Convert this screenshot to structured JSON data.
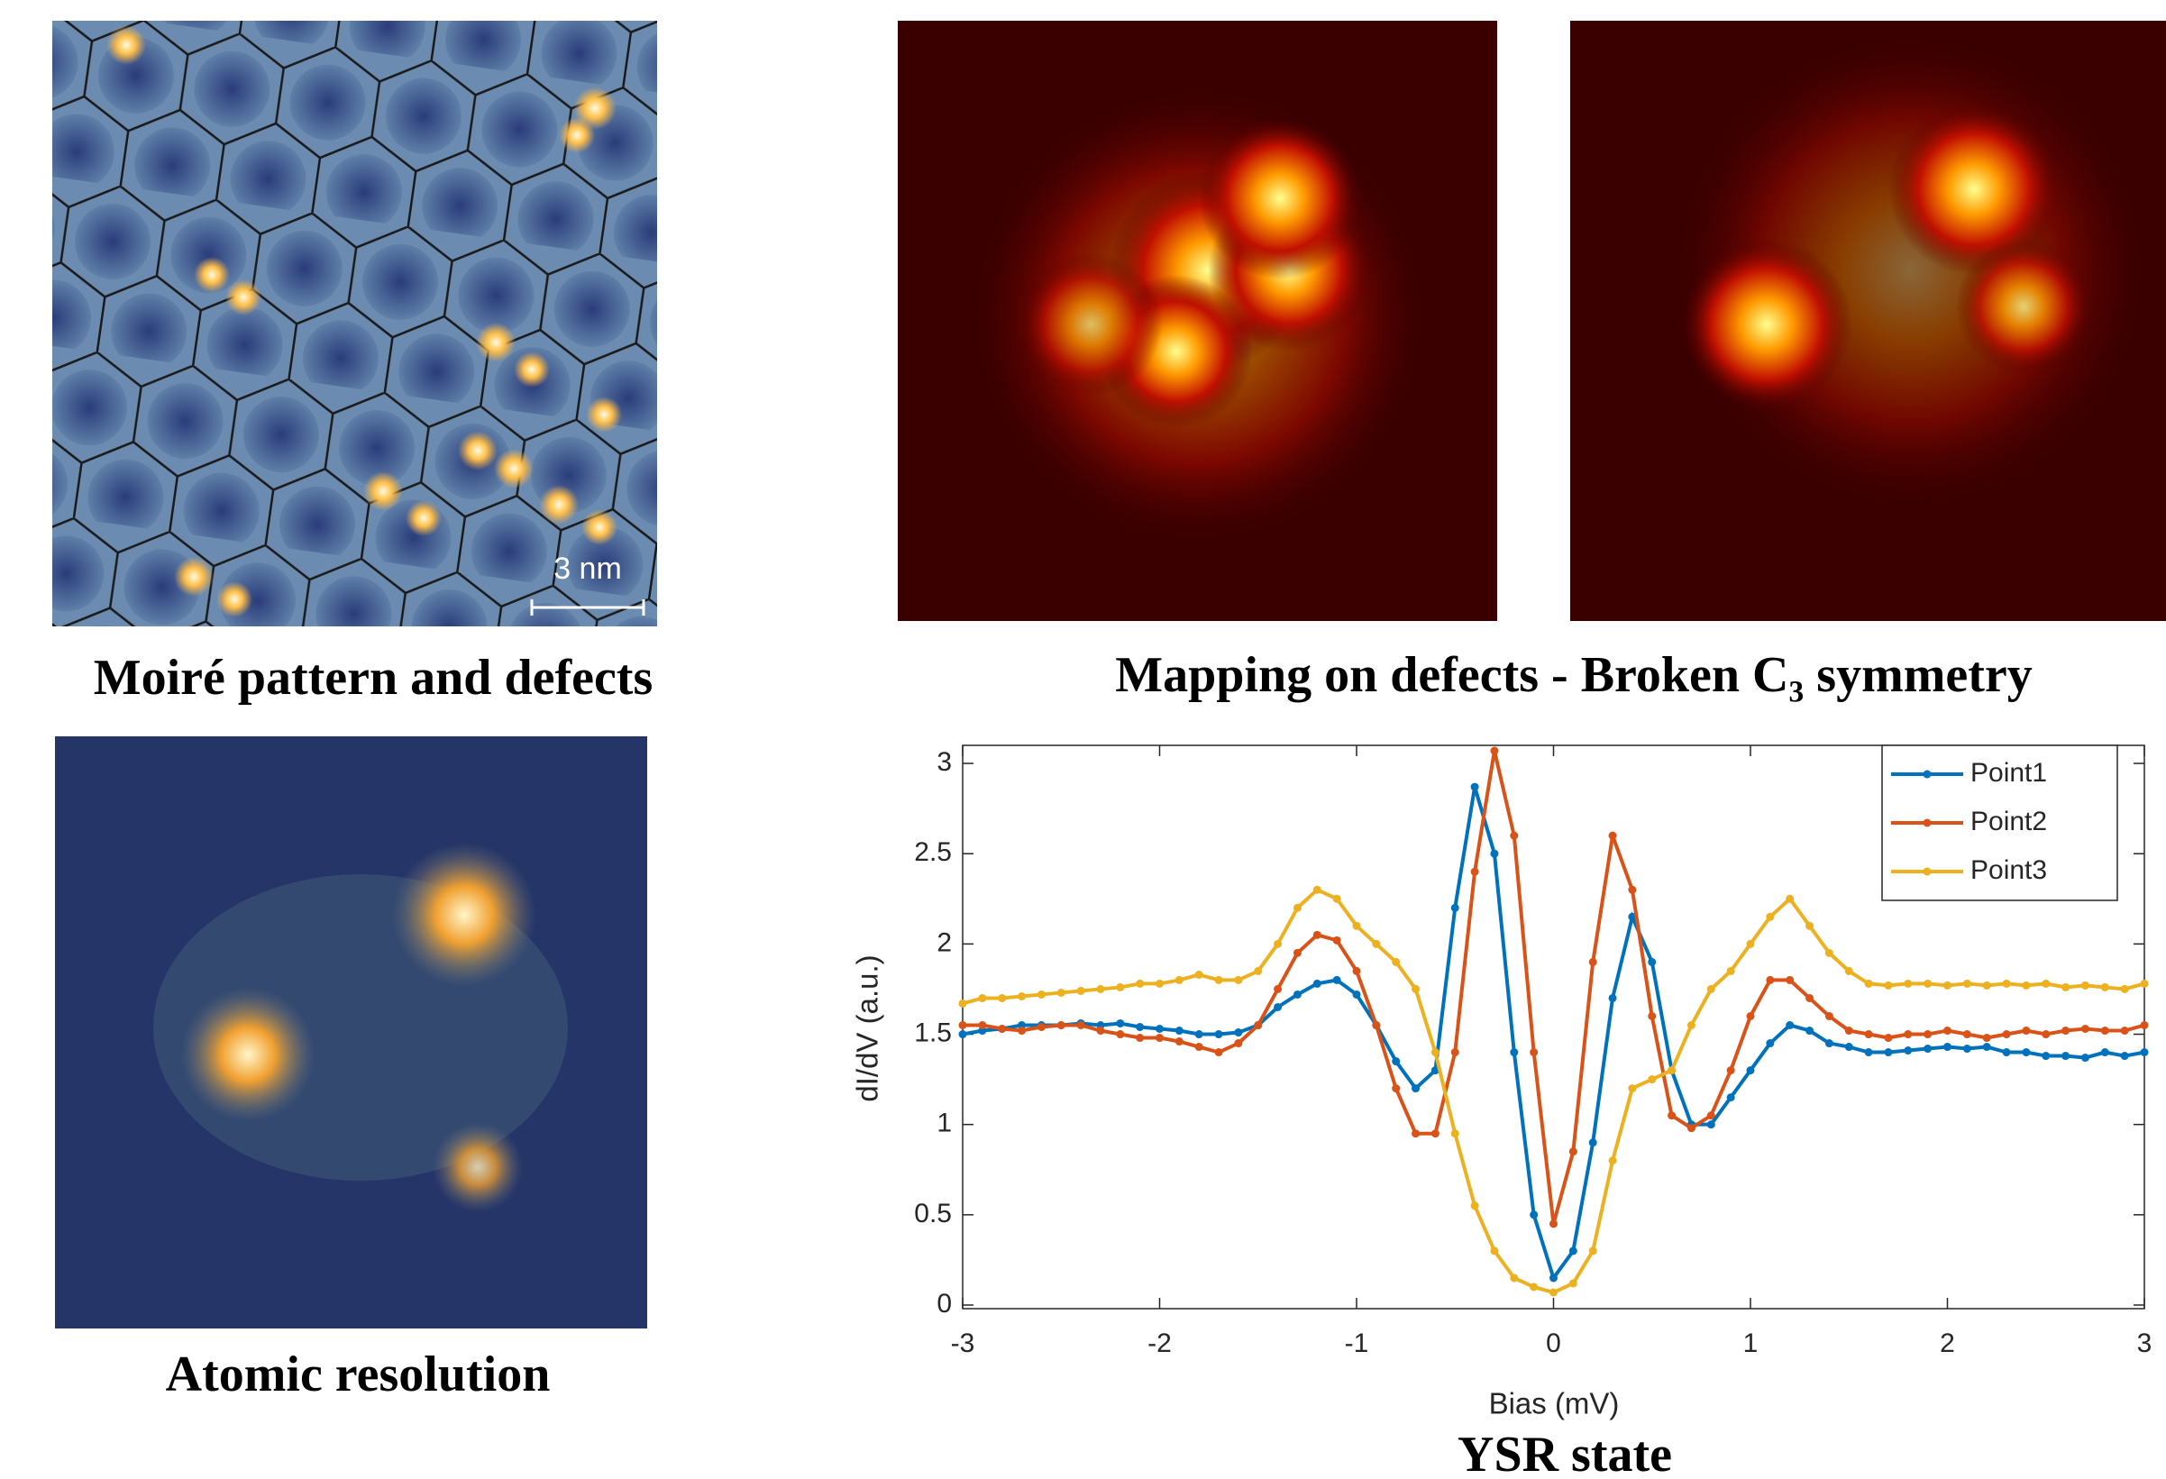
{
  "panels": {
    "moire_caption": "Moiré pattern and defects",
    "scale_bar": "3 nm",
    "mapping_caption": "Mapping on defects - Broken C₃ symmetry",
    "atomic_caption": "Atomic resolution",
    "ysr_caption": "YSR state"
  },
  "chart_data": {
    "type": "line",
    "xlabel": "Bias (mV)",
    "ylabel": "dI/dV (a.u.)",
    "x": [
      -3.0,
      -2.9,
      -2.8,
      -2.7,
      -2.6,
      -2.5,
      -2.4,
      -2.3,
      -2.2,
      -2.1,
      -2.0,
      -1.9,
      -1.8,
      -1.7,
      -1.6,
      -1.5,
      -1.4,
      -1.3,
      -1.2,
      -1.1,
      -1.0,
      -0.9,
      -0.8,
      -0.7,
      -0.6,
      -0.5,
      -0.4,
      -0.3,
      -0.2,
      -0.1,
      0.0,
      0.1,
      0.2,
      0.3,
      0.4,
      0.5,
      0.6,
      0.7,
      0.8,
      0.9,
      1.0,
      1.1,
      1.2,
      1.3,
      1.4,
      1.5,
      1.6,
      1.7,
      1.8,
      1.9,
      2.0,
      2.1,
      2.2,
      2.3,
      2.4,
      2.5,
      2.6,
      2.7,
      2.8,
      2.9,
      3.0
    ],
    "xlim": [
      -3,
      3
    ],
    "ylim": [
      -0.02,
      3.1
    ],
    "xticks": [
      -3,
      -2,
      -1,
      0,
      1,
      2,
      3
    ],
    "yticks": [
      0,
      0.5,
      1,
      1.5,
      2,
      2.5,
      3
    ],
    "legend": "upper right",
    "series": [
      {
        "name": "Point1",
        "color": "#0072BD",
        "values": [
          1.5,
          1.52,
          1.53,
          1.55,
          1.55,
          1.55,
          1.56,
          1.55,
          1.56,
          1.54,
          1.53,
          1.52,
          1.5,
          1.5,
          1.51,
          1.55,
          1.65,
          1.72,
          1.78,
          1.8,
          1.72,
          1.55,
          1.35,
          1.2,
          1.3,
          2.2,
          2.87,
          2.5,
          1.4,
          0.5,
          0.15,
          0.3,
          0.9,
          1.7,
          2.15,
          1.9,
          1.3,
          1.0,
          1.0,
          1.15,
          1.3,
          1.45,
          1.55,
          1.52,
          1.45,
          1.43,
          1.4,
          1.4,
          1.41,
          1.42,
          1.43,
          1.42,
          1.43,
          1.4,
          1.4,
          1.38,
          1.38,
          1.37,
          1.4,
          1.38,
          1.4
        ]
      },
      {
        "name": "Point2",
        "color": "#D95319",
        "values": [
          1.55,
          1.55,
          1.53,
          1.52,
          1.54,
          1.55,
          1.55,
          1.52,
          1.5,
          1.48,
          1.48,
          1.46,
          1.43,
          1.4,
          1.45,
          1.55,
          1.75,
          1.95,
          2.05,
          2.02,
          1.85,
          1.55,
          1.2,
          0.95,
          0.95,
          1.4,
          2.4,
          3.07,
          2.6,
          1.4,
          0.45,
          0.85,
          1.9,
          2.6,
          2.3,
          1.6,
          1.05,
          0.98,
          1.05,
          1.3,
          1.6,
          1.8,
          1.8,
          1.7,
          1.6,
          1.52,
          1.5,
          1.48,
          1.5,
          1.5,
          1.52,
          1.5,
          1.48,
          1.5,
          1.52,
          1.5,
          1.52,
          1.53,
          1.52,
          1.52,
          1.55
        ]
      },
      {
        "name": "Point3",
        "color": "#EDB120",
        "values": [
          1.67,
          1.7,
          1.7,
          1.71,
          1.72,
          1.73,
          1.74,
          1.75,
          1.76,
          1.78,
          1.78,
          1.8,
          1.83,
          1.8,
          1.8,
          1.85,
          2.0,
          2.2,
          2.3,
          2.25,
          2.1,
          2.0,
          1.9,
          1.75,
          1.4,
          0.95,
          0.55,
          0.3,
          0.15,
          0.1,
          0.07,
          0.12,
          0.3,
          0.8,
          1.2,
          1.25,
          1.3,
          1.55,
          1.75,
          1.85,
          2.0,
          2.15,
          2.25,
          2.1,
          1.95,
          1.85,
          1.78,
          1.77,
          1.78,
          1.78,
          1.77,
          1.78,
          1.77,
          1.78,
          1.77,
          1.78,
          1.76,
          1.77,
          1.76,
          1.75,
          1.78
        ]
      }
    ]
  }
}
